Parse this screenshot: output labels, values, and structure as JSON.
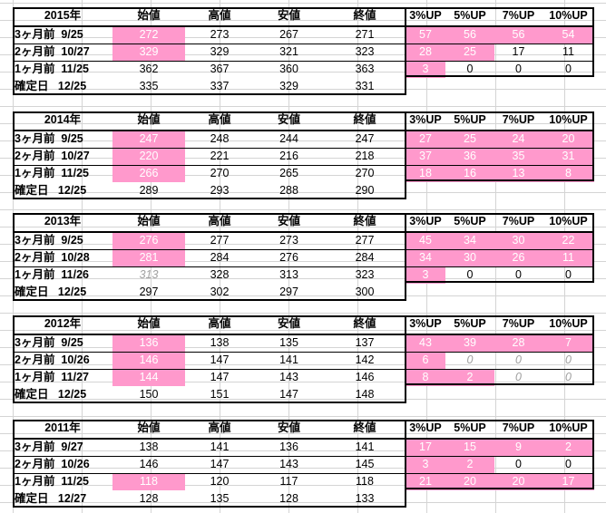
{
  "header_labels": [
    "始値",
    "高値",
    "安値",
    "終値",
    "3%UP",
    "5%UP",
    "7%UP",
    "10%UP"
  ],
  "colors": {
    "highlight": "#ff99cc",
    "grayed": "#a0a0a0"
  },
  "years": [
    {
      "year": "2015年",
      "rows": [
        {
          "label": "3ヶ月前  9/25",
          "values": [
            "272",
            "273",
            "267",
            "271",
            "57",
            "56",
            "56",
            "54"
          ],
          "pink": [
            true,
            false,
            false,
            false,
            true,
            true,
            true,
            true
          ]
        },
        {
          "label": "2ヶ月前  10/27",
          "values": [
            "329",
            "329",
            "321",
            "323",
            "28",
            "25",
            "17",
            "11"
          ],
          "pink": [
            true,
            false,
            false,
            false,
            true,
            true,
            false,
            false
          ]
        },
        {
          "label": "1ヶ月前  11/25",
          "values": [
            "362",
            "367",
            "360",
            "363",
            "3",
            "0",
            "0",
            "0"
          ],
          "pink": [
            false,
            false,
            false,
            false,
            true,
            false,
            false,
            false
          ]
        },
        {
          "label": "確定日   12/25",
          "values": [
            "335",
            "337",
            "329",
            "331"
          ],
          "pink": [
            false,
            false,
            false,
            false
          ]
        }
      ]
    },
    {
      "year": "2014年",
      "rows": [
        {
          "label": "3ヶ月前  9/25",
          "values": [
            "247",
            "248",
            "244",
            "247",
            "27",
            "25",
            "24",
            "20"
          ],
          "pink": [
            true,
            false,
            false,
            false,
            true,
            true,
            true,
            true
          ]
        },
        {
          "label": "2ヶ月前  10/27",
          "values": [
            "220",
            "221",
            "216",
            "218",
            "37",
            "36",
            "35",
            "31"
          ],
          "pink": [
            true,
            false,
            false,
            false,
            true,
            true,
            true,
            true
          ]
        },
        {
          "label": "1ヶ月前  11/25",
          "values": [
            "266",
            "270",
            "265",
            "270",
            "18",
            "16",
            "13",
            "8"
          ],
          "pink": [
            true,
            false,
            false,
            false,
            true,
            true,
            true,
            true
          ]
        },
        {
          "label": "確定日   12/25",
          "values": [
            "289",
            "293",
            "288",
            "290"
          ],
          "pink": [
            false,
            false,
            false,
            false
          ]
        }
      ]
    },
    {
      "year": "2013年",
      "rows": [
        {
          "label": "3ヶ月前  9/25",
          "values": [
            "276",
            "277",
            "273",
            "277",
            "45",
            "34",
            "30",
            "22"
          ],
          "pink": [
            true,
            false,
            false,
            false,
            true,
            true,
            true,
            true
          ]
        },
        {
          "label": "2ヶ月前  10/28",
          "values": [
            "281",
            "284",
            "276",
            "284",
            "34",
            "30",
            "26",
            "11"
          ],
          "pink": [
            true,
            false,
            false,
            false,
            true,
            true,
            true,
            true
          ]
        },
        {
          "label": "1ヶ月前  11/26",
          "values": [
            "313",
            "328",
            "313",
            "323",
            "3",
            "0",
            "0",
            "0"
          ],
          "pink": [
            false,
            false,
            false,
            false,
            true,
            false,
            false,
            false
          ],
          "gray": [
            true,
            false,
            false,
            false,
            false,
            false,
            false,
            false
          ]
        },
        {
          "label": "確定日   12/25",
          "values": [
            "297",
            "302",
            "297",
            "300"
          ],
          "pink": [
            false,
            false,
            false,
            false
          ]
        }
      ]
    },
    {
      "year": "2012年",
      "rows": [
        {
          "label": "3ヶ月前  9/25",
          "values": [
            "136",
            "138",
            "135",
            "137",
            "43",
            "39",
            "28",
            "7"
          ],
          "pink": [
            true,
            false,
            false,
            false,
            true,
            true,
            true,
            true
          ]
        },
        {
          "label": "2ヶ月前  10/26",
          "values": [
            "146",
            "147",
            "141",
            "142",
            "6",
            "0",
            "0",
            "0"
          ],
          "pink": [
            true,
            false,
            false,
            false,
            true,
            false,
            false,
            false
          ],
          "gray": [
            false,
            false,
            false,
            false,
            false,
            true,
            true,
            true
          ]
        },
        {
          "label": "1ヶ月前  11/27",
          "values": [
            "144",
            "147",
            "143",
            "146",
            "8",
            "2",
            "0",
            "0"
          ],
          "pink": [
            true,
            false,
            false,
            false,
            true,
            true,
            false,
            false
          ],
          "gray": [
            false,
            false,
            false,
            false,
            false,
            false,
            true,
            true
          ]
        },
        {
          "label": "確定日   12/25",
          "values": [
            "150",
            "151",
            "147",
            "148"
          ],
          "pink": [
            false,
            false,
            false,
            false
          ]
        }
      ]
    },
    {
      "year": "2011年",
      "rows": [
        {
          "label": "3ヶ月前  9/27",
          "values": [
            "138",
            "141",
            "136",
            "141",
            "17",
            "15",
            "9",
            "2"
          ],
          "pink": [
            false,
            false,
            false,
            false,
            true,
            true,
            true,
            true
          ]
        },
        {
          "label": "2ヶ月前  10/26",
          "values": [
            "146",
            "147",
            "143",
            "145",
            "3",
            "2",
            "0",
            "0"
          ],
          "pink": [
            false,
            false,
            false,
            false,
            true,
            true,
            false,
            false
          ]
        },
        {
          "label": "1ヶ月前  11/25",
          "values": [
            "118",
            "120",
            "117",
            "118",
            "21",
            "20",
            "20",
            "17"
          ],
          "pink": [
            true,
            false,
            false,
            false,
            true,
            true,
            true,
            true
          ]
        },
        {
          "label": "確定日   12/27",
          "values": [
            "128",
            "135",
            "128",
            "133"
          ],
          "pink": [
            false,
            false,
            false,
            false
          ]
        }
      ]
    }
  ]
}
